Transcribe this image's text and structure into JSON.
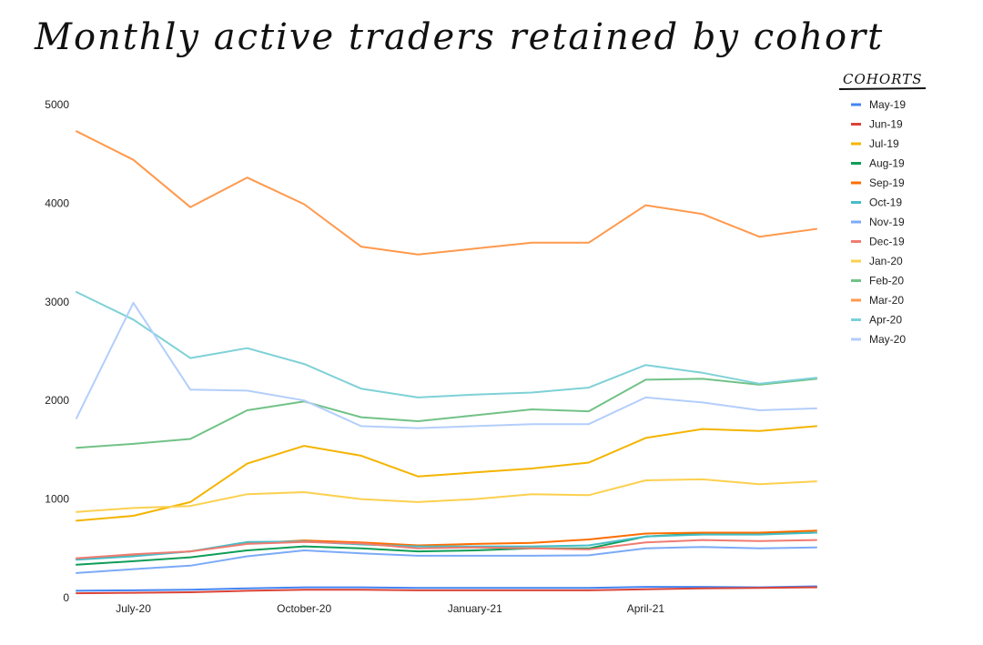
{
  "chart_data": {
    "type": "line",
    "title": "Monthly active traders retained by cohort",
    "xlabel": "",
    "ylabel": "",
    "ylim": [
      0,
      5000
    ],
    "y_ticks": [
      0,
      1000,
      2000,
      3000,
      4000,
      5000
    ],
    "x": [
      "2020-06",
      "2020-07",
      "2020-08",
      "2020-09",
      "2020-10",
      "2020-11",
      "2020-12",
      "2021-01",
      "2021-02",
      "2021-03",
      "2021-04",
      "2021-05",
      "2021-06",
      "2021-07"
    ],
    "x_tick_labels": [
      {
        "x": "2020-07",
        "label": "July-20"
      },
      {
        "x": "2020-10",
        "label": "October-20"
      },
      {
        "x": "2021-01",
        "label": "January-21"
      },
      {
        "x": "2021-04",
        "label": "April-21"
      }
    ],
    "grid": false,
    "legend_title": "COHORTS",
    "legend_position": "right",
    "series": [
      {
        "name": "May-19",
        "color": "#4285f4",
        "values": [
          70,
          75,
          80,
          95,
          105,
          105,
          100,
          100,
          100,
          100,
          110,
          110,
          105,
          115
        ]
      },
      {
        "name": "Jun-19",
        "color": "#db4437",
        "values": [
          45,
          50,
          55,
          70,
          80,
          80,
          75,
          75,
          75,
          75,
          85,
          95,
          100,
          105
        ]
      },
      {
        "name": "Jul-19",
        "color": "#f4b400",
        "values": [
          780,
          830,
          970,
          1360,
          1540,
          1440,
          1230,
          1270,
          1310,
          1370,
          1620,
          1710,
          1690,
          1740
        ]
      },
      {
        "name": "Aug-19",
        "color": "#0f9d58",
        "values": [
          335,
          370,
          410,
          480,
          520,
          500,
          470,
          480,
          500,
          500,
          620,
          650,
          650,
          660
        ]
      },
      {
        "name": "Sep-19",
        "color": "#ff6d01",
        "values": [
          395,
          430,
          470,
          550,
          580,
          560,
          530,
          545,
          555,
          590,
          650,
          660,
          660,
          680
        ]
      },
      {
        "name": "Oct-19",
        "color": "#46bdc6",
        "values": [
          385,
          420,
          470,
          565,
          570,
          540,
          520,
          520,
          520,
          530,
          620,
          640,
          640,
          660
        ]
      },
      {
        "name": "Nov-19",
        "color": "#7baaf7",
        "values": [
          250,
          290,
          325,
          420,
          480,
          450,
          425,
          425,
          425,
          430,
          500,
          515,
          500,
          510
        ]
      },
      {
        "name": "Dec-19",
        "color": "#f07b72",
        "values": [
          400,
          440,
          470,
          545,
          565,
          550,
          500,
          510,
          500,
          490,
          560,
          585,
          575,
          585
        ]
      },
      {
        "name": "Jan-20",
        "color": "#fcd04f",
        "values": [
          870,
          910,
          930,
          1050,
          1070,
          1000,
          970,
          1000,
          1050,
          1040,
          1190,
          1200,
          1150,
          1180
        ]
      },
      {
        "name": "Feb-20",
        "color": "#71c287",
        "values": [
          1520,
          1560,
          1610,
          1900,
          1990,
          1830,
          1790,
          1850,
          1910,
          1890,
          2210,
          2220,
          2160,
          2220
        ]
      },
      {
        "name": "Mar-20",
        "color": "#ff994d",
        "values": [
          4730,
          4440,
          3960,
          4260,
          3990,
          3560,
          3480,
          3540,
          3600,
          3600,
          3980,
          3890,
          3660,
          3740
        ]
      },
      {
        "name": "Apr-20",
        "color": "#7ed1d7",
        "values": [
          3100,
          2820,
          2430,
          2530,
          2370,
          2120,
          2030,
          2060,
          2080,
          2130,
          2360,
          2280,
          2170,
          2230
        ]
      },
      {
        "name": "May-20",
        "color": "#b3cefb",
        "values": [
          1820,
          2990,
          2110,
          2100,
          2000,
          1740,
          1720,
          1740,
          1760,
          1760,
          2030,
          1980,
          1900,
          1920
        ]
      }
    ]
  }
}
